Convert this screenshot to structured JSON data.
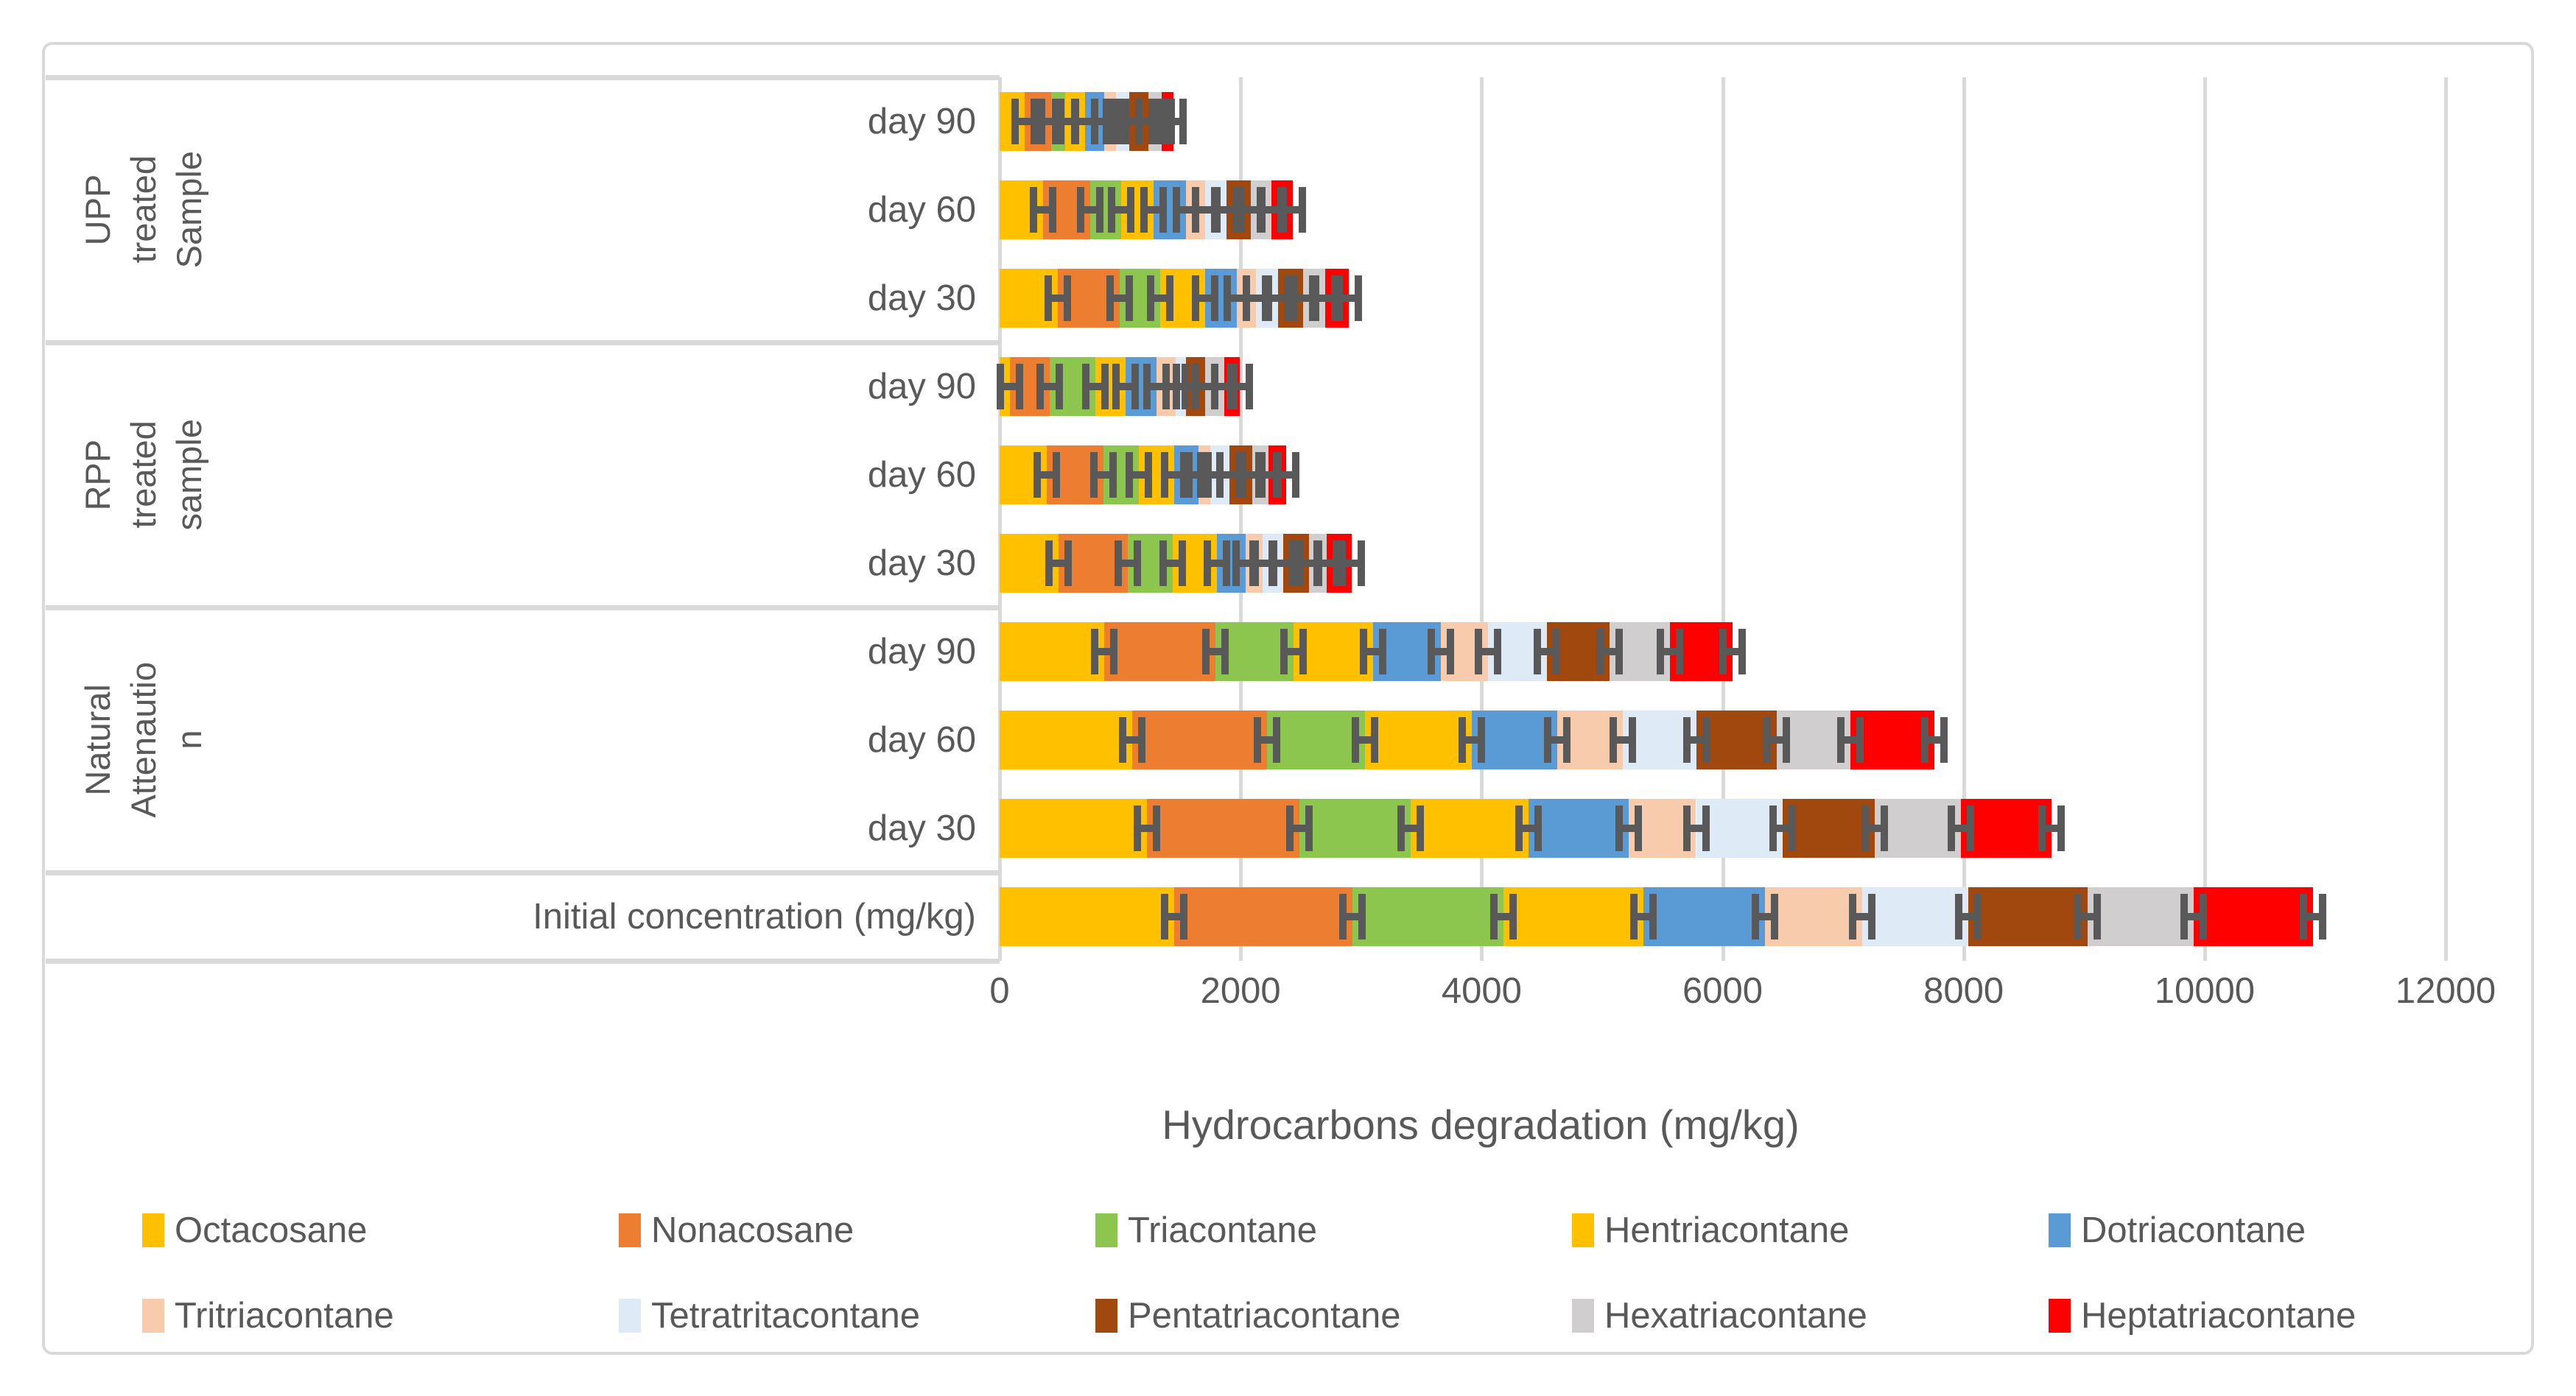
{
  "chart_data": {
    "type": "bar",
    "orientation": "horizontal",
    "stacked": true,
    "xlabel": "Hydrocarbons degradation (mg/kg)",
    "xlim": [
      0,
      12000
    ],
    "x_ticks": [
      0,
      2000,
      4000,
      6000,
      8000,
      10000,
      12000
    ],
    "grid": true,
    "legend_position": "bottom",
    "error_bars": true,
    "colors": {
      "text": "#595959",
      "grid": "#D9D9D9",
      "error_bar": "#595959"
    },
    "series": [
      {
        "name": "Octacosane",
        "color": "#FFC000"
      },
      {
        "name": "Nonacosane",
        "color": "#ED7D31"
      },
      {
        "name": "Triacontane",
        "color": "#8DC64E"
      },
      {
        "name": "Hentriacontane",
        "color": "#FFC000"
      },
      {
        "name": "Dotriacontane",
        "color": "#5B9BD5"
      },
      {
        "name": "Tritriacontane",
        "color": "#F8CBAD"
      },
      {
        "name": "Tetratritacontane",
        "color": "#DEEBF7"
      },
      {
        "name": "Pentatriacontane",
        "color": "#A0480E"
      },
      {
        "name": "Hexatriacontane",
        "color": "#D0CECE"
      },
      {
        "name": "Heptatriacontane",
        "color": "#FF0000"
      }
    ],
    "groups": [
      {
        "label": "UPP treated Sample",
        "label_lines": [
          "UPP",
          "treated",
          "Sample"
        ],
        "rows": [
          {
            "label": "day 90",
            "values": [
              210,
              215,
              120,
              165,
              160,
              95,
              110,
              160,
              110,
              100
            ]
          },
          {
            "label": "day 60",
            "values": [
              360,
              390,
              260,
              270,
              265,
              160,
              180,
              200,
              170,
              180
            ]
          },
          {
            "label": "day 30",
            "values": [
              480,
              515,
              340,
              370,
              265,
              160,
              180,
              210,
              180,
              200
            ]
          }
        ]
      },
      {
        "label": "RPP treated sample",
        "label_lines": [
          "RPP",
          "treated",
          "sample"
        ],
        "rows": [
          {
            "label": "day 90",
            "values": [
              85,
              330,
              380,
              250,
              260,
              155,
              85,
              160,
              160,
              125
            ]
          },
          {
            "label": "day 60",
            "values": [
              390,
              470,
              295,
              295,
              200,
              100,
              155,
              190,
              135,
              150
            ]
          },
          {
            "label": "day 30",
            "values": [
              490,
              575,
              370,
              370,
              235,
              145,
              170,
              210,
              150,
              210
            ]
          }
        ]
      },
      {
        "label": "Natural Attenaution",
        "label_lines": [
          "Natural",
          "Attenautio",
          "n"
        ],
        "rows": [
          {
            "label": "day 90",
            "values": [
              870,
              920,
              650,
              660,
              560,
              390,
              490,
              520,
              500,
              520
            ]
          },
          {
            "label": "day 60",
            "values": [
              1100,
              1120,
              810,
              890,
              710,
              540,
              610,
              670,
              610,
              700
            ]
          },
          {
            "label": "day 30",
            "values": [
              1220,
              1270,
              920,
              980,
              830,
              560,
              720,
              760,
              720,
              750
            ]
          }
        ]
      },
      {
        "label": "",
        "label_lines": [],
        "rows": [
          {
            "label": "Initial concentration (mg/kg)",
            "values": [
              1450,
              1480,
              1250,
              1160,
              1010,
              810,
              880,
              990,
              880,
              990
            ]
          }
        ]
      }
    ]
  }
}
